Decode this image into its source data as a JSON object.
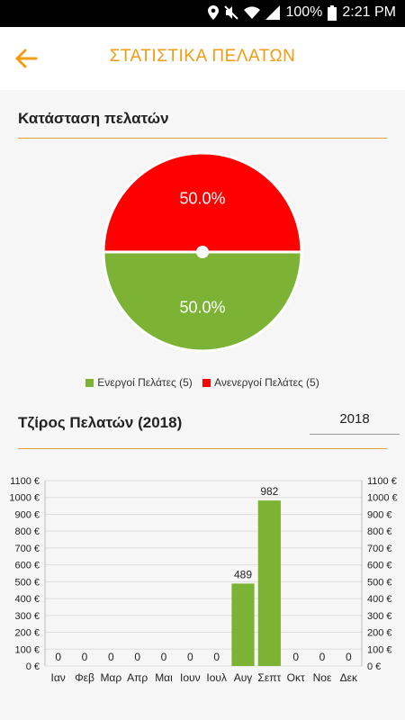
{
  "status": {
    "battery": "100%",
    "time": "2:21 PM"
  },
  "header": {
    "title": "ΣΤΑΤΙΣΤΙΚΑ ΠΕΛΑΤΩΝ",
    "accent": "#f39c12"
  },
  "status_section": {
    "title": "Κατάσταση πελατών"
  },
  "revenue_section": {
    "title": "Τζίρος Πελατών (2018)",
    "year_value": "2018"
  },
  "chart_data": [
    {
      "type": "pie",
      "slices": [
        {
          "label": "Ενεργοί Πελάτες (5)",
          "value": 50.0,
          "display": "50.0%",
          "color": "#7cb335"
        },
        {
          "label": "Ανενεργοί Πελάτες (5)",
          "value": 50.0,
          "display": "50.0%",
          "color": "#ff0000"
        }
      ],
      "legend": "bottom"
    },
    {
      "type": "bar",
      "categories": [
        "Ιαν",
        "Φεβ",
        "Μαρ",
        "Απρ",
        "Μαι",
        "Ιουν",
        "Ιουλ",
        "Αυγ",
        "Σεπτ",
        "Οκτ",
        "Νοε",
        "Δεκ"
      ],
      "values": [
        0,
        0,
        0,
        0,
        0,
        0,
        0,
        489,
        982,
        0,
        0,
        0
      ],
      "ylim": [
        0,
        1100
      ],
      "yticks": [
        "0 €",
        "100 €",
        "200 €",
        "300 €",
        "400 €",
        "500 €",
        "600 €",
        "700 €",
        "800 €",
        "900 €",
        "1000 €",
        "1100 €"
      ],
      "bar_color": "#7cb335",
      "grid": true
    }
  ]
}
